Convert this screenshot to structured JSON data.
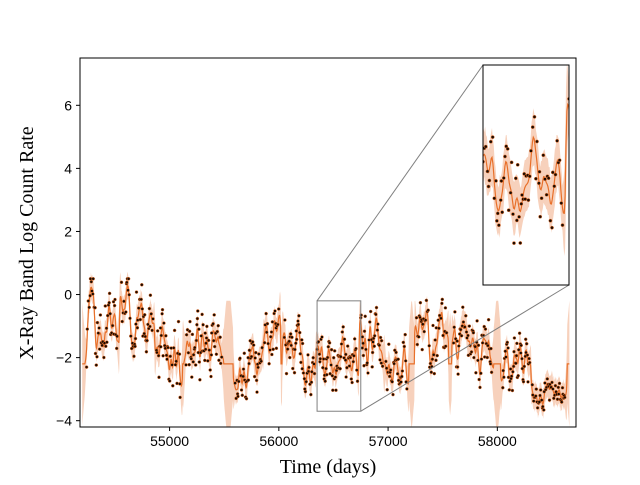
{
  "chart_data": {
    "type": "line",
    "xlabel": "Time (days)",
    "ylabel": "X-Ray Band Log Count Rate",
    "xlim": [
      54180,
      58720
    ],
    "ylim": [
      -4.2,
      7.5
    ],
    "x_ticks": [
      55000,
      56000,
      57000,
      58000
    ],
    "y_ticks": [
      -4,
      -2,
      0,
      2,
      4,
      6
    ],
    "grid": false,
    "legend": "none",
    "colors": {
      "gp_mean": "#e8702a",
      "gp_band": "#f6c9b0",
      "points": "#1a0a00",
      "zoom_lines": "#808080"
    },
    "segments": [
      {
        "x0": 54240,
        "x1": 54520,
        "level": -1.2,
        "amp": 1.1
      },
      {
        "x0": 54560,
        "x1": 54850,
        "level": -0.5,
        "amp": 0.9
      },
      {
        "x0": 54880,
        "x1": 55100,
        "level": -1.8,
        "amp": 1.0
      },
      {
        "x0": 55150,
        "x1": 55480,
        "level": -1.6,
        "amp": 0.9
      },
      {
        "x0": 55600,
        "x1": 55850,
        "level": -2.4,
        "amp": 0.7
      },
      {
        "x0": 55870,
        "x1": 56000,
        "level": -0.9,
        "amp": 1.0
      },
      {
        "x0": 56050,
        "x1": 56330,
        "level": -1.9,
        "amp": 0.8
      },
      {
        "x0": 56350,
        "x1": 56720,
        "level": -2.2,
        "amp": 0.7
      },
      {
        "x0": 56750,
        "x1": 56950,
        "level": -1.6,
        "amp": 0.9
      },
      {
        "x0": 56980,
        "x1": 57180,
        "level": -2.1,
        "amp": 0.8
      },
      {
        "x0": 57260,
        "x1": 57540,
        "level": -1.3,
        "amp": 0.9
      },
      {
        "x0": 57600,
        "x1": 57950,
        "level": -1.8,
        "amp": 1.0
      },
      {
        "x0": 58050,
        "x1": 58300,
        "level": -2.3,
        "amp": 0.8
      },
      {
        "x0": 58320,
        "x1": 58620,
        "level": -3.1,
        "amp": 0.4
      }
    ],
    "inset": {
      "xlim": [
        56350,
        56750
      ],
      "ylim": [
        -3.7,
        -0.2
      ]
    }
  }
}
